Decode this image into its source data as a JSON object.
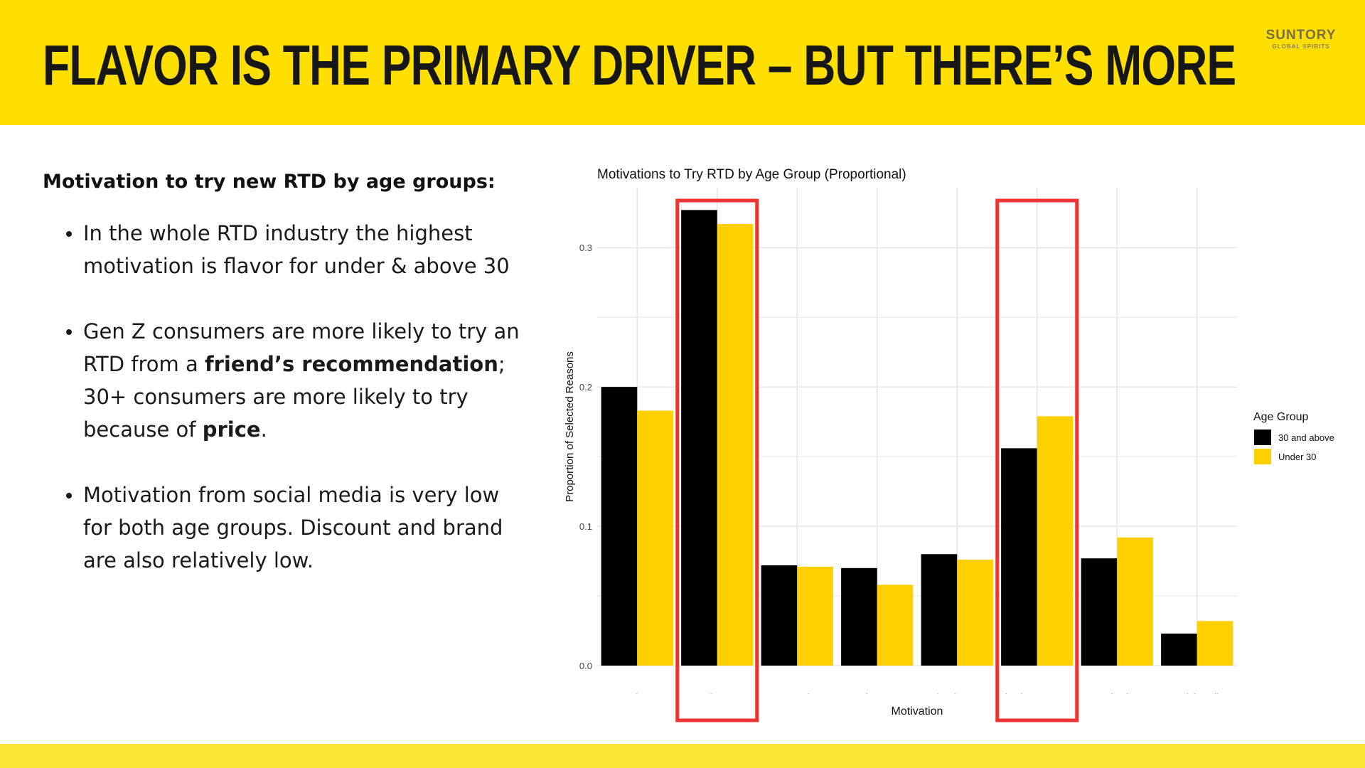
{
  "header": {
    "title": "FLAVOR IS THE PRIMARY DRIVER – BUT THERE’S MORE",
    "logo_main": "SUNTORY",
    "logo_sub": "GLOBAL SPIRITS"
  },
  "left_panel": {
    "heading": "Motivation to try new RTD by age groups:",
    "bullets": [
      {
        "parts": [
          "In the whole RTD industry the highest motivation is flavor for under & above 30"
        ]
      },
      {
        "parts": [
          "Gen Z consumers are more likely to try an RTD from a ",
          "friend’s recommendation",
          "; 30+ consumers are more likely to try because of ",
          "price",
          "."
        ]
      },
      {
        "parts": [
          "Motivation from social media is very low for both age groups. Discount and brand are also relatively low."
        ]
      }
    ]
  },
  "colors": {
    "header_band": "#FFDF00",
    "footer_band": "#FCE535",
    "series_30_plus": "#000000",
    "series_under_30": "#FFD000",
    "highlight_box": "#EE3333",
    "grid": "#e6e6e6"
  },
  "chart_data": {
    "type": "bar",
    "title": "Motivations to Try RTD by Age Group (Proportional)",
    "xlabel": "Motivation",
    "ylabel": "Proportion of Selected Reasons",
    "categories": [
      "Price",
      "Flavor",
      "Brand",
      "Discount",
      "Advertisement",
      "Friend Recommend",
      "Packaging",
      "Social Media"
    ],
    "series": [
      {
        "name": "30 and above",
        "values": [
          0.2,
          0.327,
          0.072,
          0.07,
          0.08,
          0.156,
          0.077,
          0.023
        ]
      },
      {
        "name": "Under 30",
        "values": [
          0.183,
          0.317,
          0.071,
          0.058,
          0.076,
          0.179,
          0.092,
          0.032
        ]
      }
    ],
    "ylim": [
      0,
      0.343
    ],
    "yticks": [
      0.0,
      0.1,
      0.2,
      0.3
    ],
    "ytick_labels": [
      "0.0",
      "0.1",
      "0.2",
      "0.3"
    ],
    "grid": true,
    "legend_title": "Age Group",
    "legend_position": "right",
    "highlighted_categories": [
      "Flavor",
      "Friend Recommend"
    ]
  }
}
